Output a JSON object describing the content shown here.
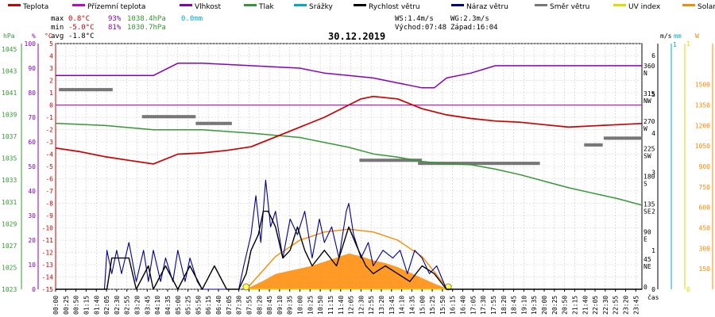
{
  "chart_data": {
    "type": "line",
    "date": "30.12.2019",
    "legend": [
      {
        "label": "Teplota",
        "color": "#cc0000"
      },
      {
        "label": "Přízemní teplota",
        "color": "#cc00cc"
      },
      {
        "label": "Vlhkost",
        "color": "#8800bb"
      },
      {
        "label": "Tlak",
        "color": "#339933"
      },
      {
        "label": "Srážky",
        "color": "#00aacc"
      },
      {
        "label": "Rychlost větru",
        "color": "#000000"
      },
      {
        "label": "Náraz větru",
        "color": "#000099"
      },
      {
        "label": "Směr větru",
        "color": "#777777"
      },
      {
        "label": "UV index",
        "color": "#dddd00"
      },
      {
        "label": "Solar",
        "color": "#ff8800"
      }
    ],
    "stats": {
      "max_label": "max",
      "max_temp": "0.8°C",
      "max_hum": "93%",
      "max_press": "1038.4hPa",
      "rain": "0.0mm",
      "min_label": "min",
      "min_temp": "-5.0°C",
      "min_hum": "81%",
      "min_press": "1030.7hPa",
      "avg_label": "avg",
      "avg_temp": "-1.8°C",
      "ws": "WS:1.4m/s",
      "wg": "WG:2.3m/s",
      "sunrise": "Východ:07:48",
      "sunset": "Západ:16:04"
    },
    "axes": {
      "hpa_label": "hPa",
      "pct_label": "%",
      "temp_label": "°C",
      "ms_label": "m/s",
      "mm_label": "mm",
      "w_label": "W",
      "x_label": "čas",
      "temp_ticks": [
        "5",
        "4",
        "3",
        "2",
        "1",
        "0",
        "-1",
        "-2",
        "-3",
        "-4",
        "-5",
        "-6",
        "-7",
        "-8",
        "-9",
        "-10",
        "-11",
        "-12",
        "-13",
        "-14",
        "-15"
      ],
      "hpa_ticks": [
        "1045",
        "1043",
        "1041",
        "1039",
        "1037",
        "1035",
        "1033",
        "1031",
        "1029",
        "1027",
        "1025",
        "1023"
      ],
      "pct_ticks": [
        "100",
        "90",
        "80",
        "70",
        "60",
        "50",
        "40",
        "30",
        "20",
        "10",
        "0"
      ],
      "dir_ticks": [
        "360 N",
        "315 NW",
        "270 W",
        "225 SW",
        "180 S",
        "135 SE",
        "90 E",
        "45 NE",
        "0"
      ],
      "ms_ticks": [
        "6",
        "5",
        "4",
        "3",
        "2",
        "1",
        "0"
      ],
      "mm_ticks": [
        "1"
      ],
      "uv_ticks": [
        "1",
        "0"
      ],
      "w_ticks": [
        "1500",
        "1350",
        "1200",
        "1050",
        "900",
        "750",
        "600",
        "450",
        "300",
        "150"
      ],
      "x_ticks": [
        "00:00",
        "00:25",
        "00:50",
        "01:15",
        "01:40",
        "02:05",
        "02:30",
        "02:55",
        "03:20",
        "03:45",
        "04:10",
        "04:35",
        "05:00",
        "05:25",
        "05:50",
        "06:15",
        "06:40",
        "07:05",
        "07:30",
        "07:55",
        "08:20",
        "08:45",
        "09:10",
        "09:35",
        "10:00",
        "10:25",
        "10:50",
        "11:15",
        "11:40",
        "12:05",
        "12:30",
        "12:55",
        "13:20",
        "13:45",
        "14:10",
        "14:35",
        "15:00",
        "15:25",
        "15:50",
        "16:15",
        "16:40",
        "17:05",
        "17:30",
        "17:55",
        "18:20",
        "18:45",
        "19:10",
        "19:35",
        "20:00",
        "20:25",
        "20:50",
        "21:15",
        "21:40",
        "22:05",
        "22:30",
        "22:55",
        "23:20",
        "23:45"
      ]
    },
    "temperature_c": {
      "hours": [
        0,
        1,
        2,
        3,
        4,
        5,
        6,
        7,
        8,
        9,
        10,
        11,
        12,
        12.5,
        13,
        14,
        15,
        16,
        17,
        18,
        19,
        20,
        21,
        22,
        23,
        24
      ],
      "values": [
        -3.5,
        -3.8,
        -4.2,
        -4.5,
        -4.8,
        -4.0,
        -3.9,
        -3.7,
        -3.4,
        -2.6,
        -1.8,
        -1.0,
        0.0,
        0.5,
        0.7,
        0.5,
        -0.3,
        -0.8,
        -1.1,
        -1.3,
        -1.4,
        -1.6,
        -1.8,
        -1.7,
        -1.6,
        -1.5
      ]
    },
    "ground_temperature_c": {
      "hours": [
        0,
        24
      ],
      "values": [
        0,
        0
      ]
    },
    "humidity_pct": {
      "hours": [
        0,
        4,
        5,
        6,
        8,
        10,
        11,
        12,
        13,
        14,
        15,
        15.5,
        16,
        17,
        18,
        24
      ],
      "values": [
        87,
        87,
        92,
        92,
        91,
        90,
        88,
        87,
        86,
        84,
        82,
        82,
        86,
        88,
        91,
        91
      ]
    },
    "pressure_hpa": {
      "hours": [
        0,
        2,
        4,
        6,
        8,
        10,
        12,
        13,
        14,
        15,
        16,
        17,
        18,
        19,
        20,
        21,
        22,
        23,
        24
      ],
      "values": [
        1038.2,
        1038.0,
        1037.6,
        1037.6,
        1037.3,
        1036.9,
        1036.0,
        1035.4,
        1035.1,
        1034.7,
        1034.5,
        1034.4,
        1034.0,
        1033.5,
        1032.9,
        1032.3,
        1031.8,
        1031.3,
        1030.7
      ]
    },
    "rain_mm": 0.0,
    "wind_speed_ms": {
      "hours": [
        0,
        2.1,
        2.3,
        3.0,
        3.3,
        3.8,
        4.0,
        4.5,
        5.0,
        5.5,
        6.0,
        6.5,
        7.0,
        7.5,
        7.8,
        8.0,
        8.3,
        8.5,
        8.7,
        9.0,
        9.3,
        9.6,
        9.9,
        10.2,
        10.5,
        11.0,
        11.5,
        12.0,
        12.4,
        12.7,
        13.0,
        13.5,
        14.0,
        14.5,
        15.0,
        15.5,
        16.0,
        24
      ],
      "values": [
        0,
        0,
        0.8,
        0.8,
        0,
        0.6,
        0,
        0.6,
        0,
        0.6,
        0,
        0.6,
        0,
        0,
        0.4,
        1.0,
        1.4,
        2.0,
        2.0,
        1.6,
        0.8,
        1.0,
        1.6,
        1.0,
        0.6,
        1.0,
        0.6,
        1.6,
        1.0,
        0.6,
        0.4,
        0.6,
        0.4,
        0.2,
        0.6,
        0.4,
        0,
        0
      ]
    },
    "wind_gust_ms": {
      "hours": [
        0,
        2.0,
        2.1,
        2.3,
        2.5,
        2.7,
        3.0,
        3.3,
        3.6,
        3.8,
        4.0,
        4.3,
        4.5,
        4.8,
        5.0,
        5.3,
        5.5,
        5.8,
        6.0,
        7.5,
        7.7,
        8.0,
        8.2,
        8.4,
        8.6,
        8.8,
        9.0,
        9.3,
        9.6,
        9.9,
        10.2,
        10.5,
        10.8,
        11.0,
        11.3,
        11.6,
        11.9,
        12.0,
        12.2,
        12.5,
        12.8,
        13.0,
        13.4,
        13.8,
        14.1,
        14.4,
        14.7,
        15.0,
        15.3,
        15.6,
        16.0,
        24
      ],
      "values": [
        0,
        0,
        1.0,
        0.4,
        1.0,
        0.4,
        1.2,
        0.2,
        1.0,
        0.2,
        1.0,
        0.2,
        0.8,
        0.2,
        1.0,
        0.2,
        0.8,
        0.2,
        0,
        0,
        0.6,
        1.4,
        2.4,
        1.2,
        2.8,
        1.6,
        2.0,
        0.8,
        1.8,
        1.4,
        2.0,
        0.8,
        1.8,
        1.2,
        1.6,
        0.8,
        2.0,
        2.2,
        1.4,
        0.8,
        1.2,
        0.6,
        1.0,
        0.8,
        1.0,
        0.4,
        1.0,
        0.8,
        0.4,
        0.6,
        0,
        0
      ]
    },
    "wind_direction_deg": [
      {
        "hours": [
          0.2,
          2.3
        ],
        "value": 325
      },
      {
        "hours": [
          3.6,
          5.7
        ],
        "value": 281
      },
      {
        "hours": [
          5.8,
          7.2
        ],
        "value": 270
      },
      {
        "hours": [
          12.5,
          15.0
        ],
        "value": 210
      },
      {
        "hours": [
          14.9,
          19.8
        ],
        "value": 205
      },
      {
        "hours": [
          21.7,
          22.4
        ],
        "value": 235
      },
      {
        "hours": [
          22.5,
          24.0
        ],
        "value": 246
      }
    ],
    "solar_w": {
      "hours": [
        7.8,
        8.5,
        9.0,
        9.5,
        10.0,
        10.5,
        11.0,
        11.5,
        12.0,
        12.5,
        13.0,
        13.5,
        14.0,
        14.5,
        15.0,
        15.5,
        16.07
      ],
      "values": [
        0,
        60,
        110,
        130,
        150,
        170,
        200,
        230,
        260,
        240,
        210,
        190,
        160,
        120,
        80,
        40,
        0
      ]
    },
    "solar_theoretical_w": {
      "hours": [
        7.8,
        9.0,
        10.0,
        11.0,
        12.0,
        13.0,
        14.0,
        15.0,
        16.07
      ],
      "values": [
        0,
        240,
        360,
        420,
        440,
        420,
        360,
        240,
        0
      ]
    },
    "uv_index": {
      "hours": [
        7.8,
        16.07
      ],
      "values": [
        0,
        0
      ]
    }
  }
}
